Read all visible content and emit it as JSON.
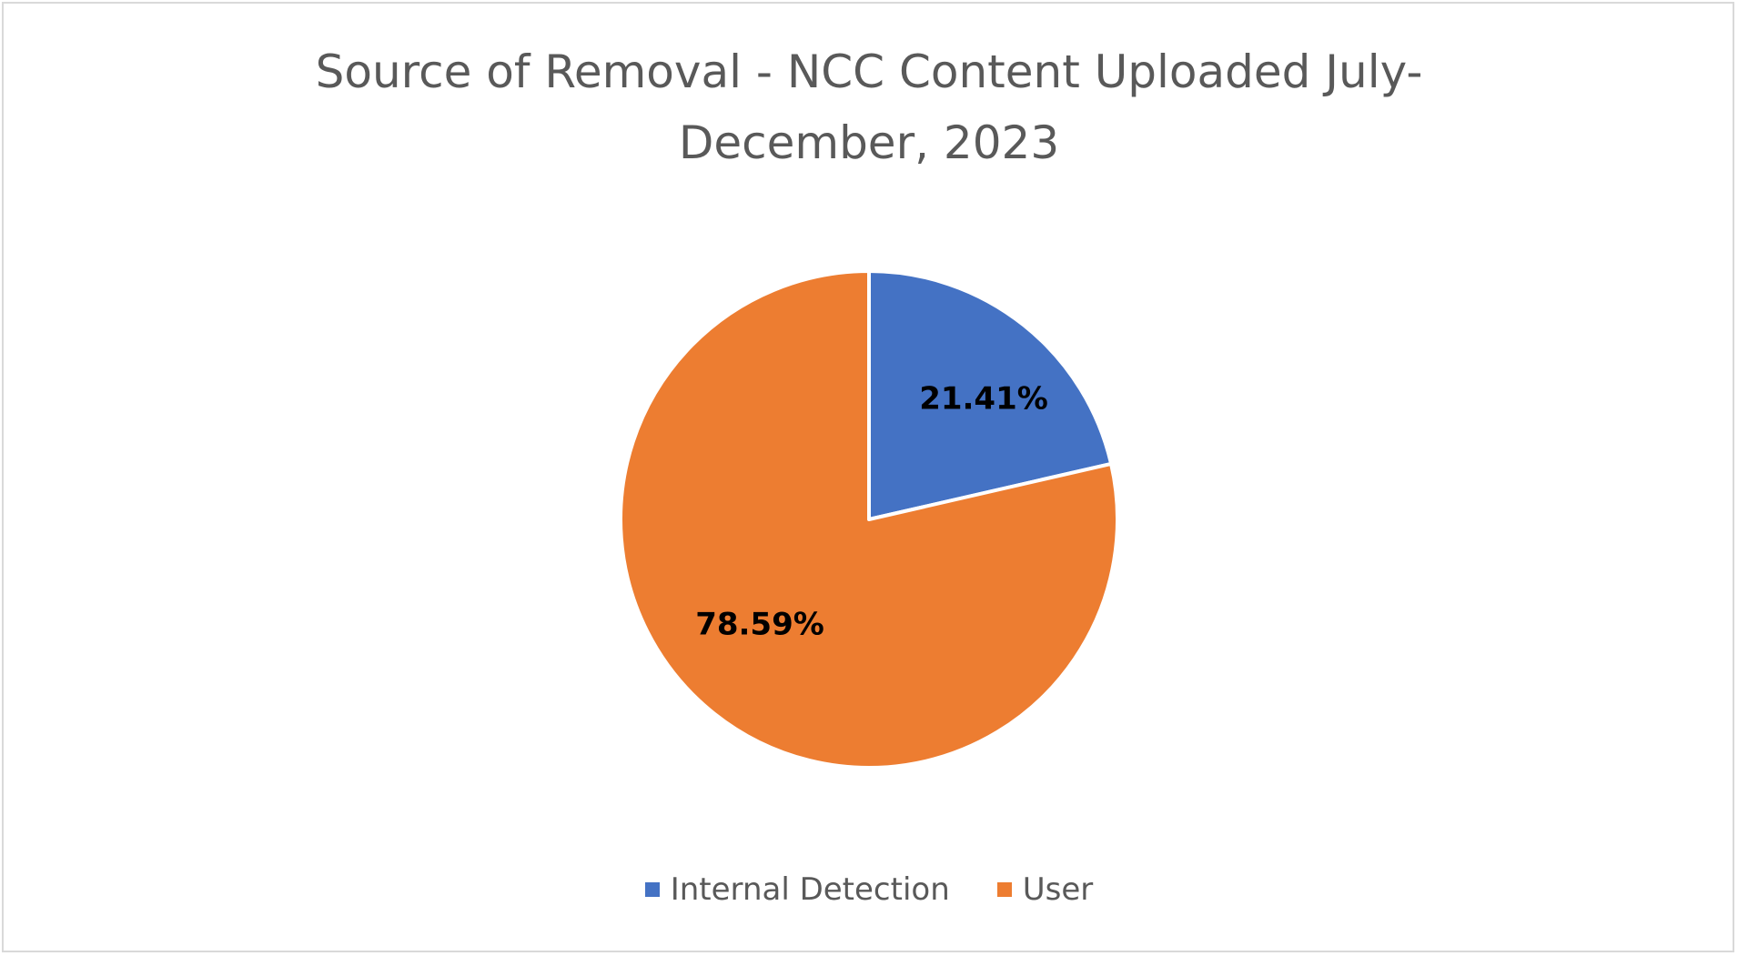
{
  "chart_data": {
    "type": "pie",
    "title": "Source of Removal - NCC Content Uploaded July-December, 2023",
    "title_lines": [
      "Source of Removal - NCC Content Uploaded July-",
      "December, 2023"
    ],
    "categories": [
      "Internal Detection",
      "User"
    ],
    "values": [
      21.41,
      78.59
    ],
    "labels": [
      "21.41%",
      "78.59%"
    ],
    "colors": [
      "#4472c4",
      "#ed7d31"
    ],
    "start_angle_deg": 0,
    "direction": "clockwise",
    "legend_position": "bottom"
  }
}
